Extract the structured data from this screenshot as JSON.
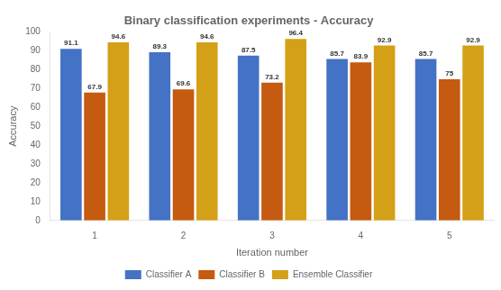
{
  "chart_data": {
    "type": "bar",
    "title": "Binary classification experiments - Accuracy",
    "x_label": "Iteration number",
    "y_label": "Accuracy",
    "categories": [
      "1",
      "2",
      "3",
      "4",
      "5"
    ],
    "series": [
      {
        "name": "Classifier A",
        "color": "#4472c4",
        "values": [
          91.1,
          89.3,
          87.5,
          85.7,
          85.7
        ]
      },
      {
        "name": "Classifier B",
        "color": "#c55a11",
        "values": [
          67.9,
          69.6,
          73.2,
          83.9,
          75
        ]
      },
      {
        "name": "Ensemble Classifier",
        "color": "#d4a017",
        "values": [
          94.6,
          94.6,
          96.4,
          92.9,
          92.9
        ]
      }
    ],
    "ylim": [
      0,
      100
    ],
    "yticks": [
      0,
      10,
      20,
      30,
      40,
      50,
      60,
      70,
      80,
      90,
      100
    ],
    "grid": false,
    "legend": "bottom",
    "data_labels": true
  }
}
